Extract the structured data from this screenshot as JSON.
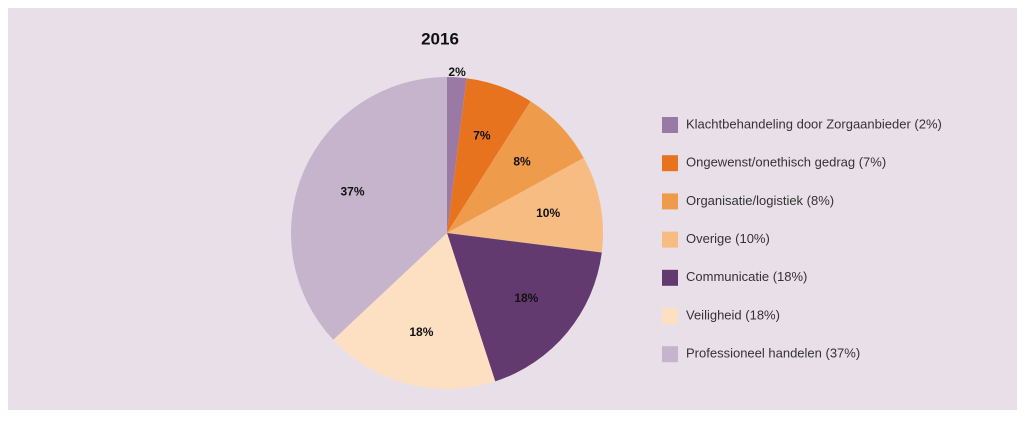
{
  "chart_data": {
    "type": "pie",
    "title": "2016",
    "categories": [
      "Klachtbehandeling door Zorgaanbieder (2%)",
      "Ongewenst/onethisch gedrag (7%)",
      "Organisatie/logistiek (8%)",
      "Overige (10%)",
      "Communicatie (18%)",
      "Veiligheid (18%)",
      "Professioneel handelen (37%)"
    ],
    "values": [
      2,
      7,
      8,
      10,
      18,
      18,
      37
    ],
    "value_labels": [
      "2%",
      "7%",
      "8%",
      "10%",
      "18%",
      "18%",
      "37%"
    ],
    "colors": [
      "#9a7aa5",
      "#e8731e",
      "#ef9b4c",
      "#f6bc82",
      "#633a6f",
      "#fde0c1",
      "#c5b4cb"
    ]
  }
}
